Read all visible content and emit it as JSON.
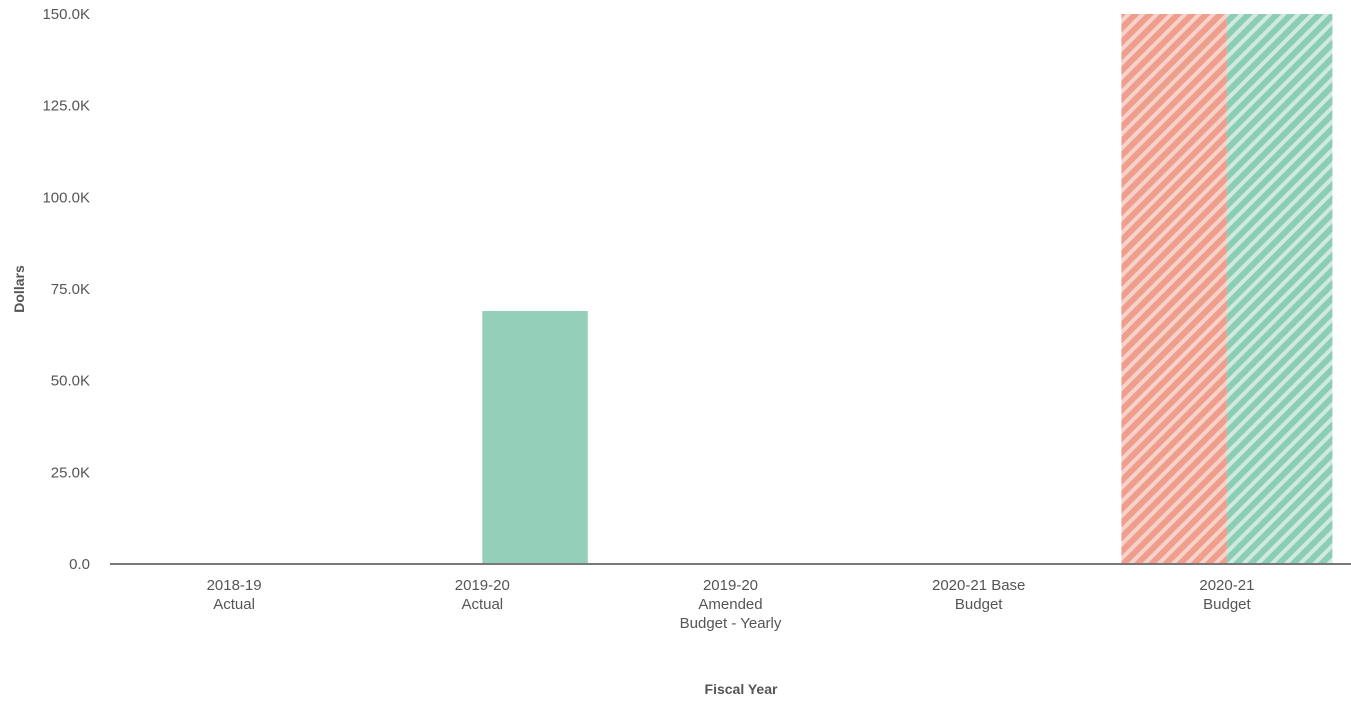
{
  "chart_data": {
    "type": "bar",
    "xlabel": "Fiscal Year",
    "ylabel": "Dollars",
    "ylim": [
      0,
      150000
    ],
    "y_ticks": [
      {
        "value": 0,
        "label": "0.0"
      },
      {
        "value": 25000,
        "label": "25.0K"
      },
      {
        "value": 50000,
        "label": "50.0K"
      },
      {
        "value": 75000,
        "label": "75.0K"
      },
      {
        "value": 100000,
        "label": "100.0K"
      },
      {
        "value": 125000,
        "label": "125.0K"
      },
      {
        "value": 150000,
        "label": "150.0K"
      }
    ],
    "categories": [
      [
        "2018-19",
        "Actual"
      ],
      [
        "2019-20",
        "Actual"
      ],
      [
        "2019-20",
        "Amended",
        "Budget - Yearly"
      ],
      [
        "2020-21 Base",
        "Budget"
      ],
      [
        "2020-21",
        "Budget"
      ]
    ],
    "series": [
      {
        "color": "#f0a090",
        "hatched": true,
        "values": [
          0,
          0,
          0,
          0,
          150000
        ]
      },
      {
        "color": "#93cfb9",
        "hatched": false,
        "values": [
          0,
          69000,
          0,
          0,
          150000
        ],
        "hatched_points": [
          4
        ]
      }
    ],
    "grid": false,
    "legend": "none",
    "axis_color": "#777777"
  }
}
